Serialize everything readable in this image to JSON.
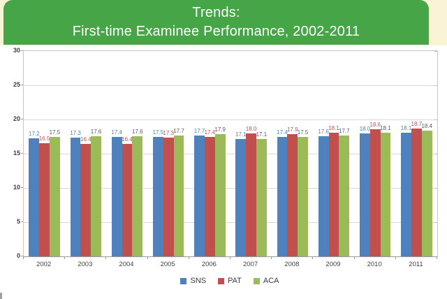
{
  "header": {
    "title_line1": "Trends:",
    "title_line2": "First-time Examinee Performance, 2002-2011",
    "banner_color": "#46A546",
    "strip_background_color": "#FAF3D6",
    "title_text_color": "#FFFFFF"
  },
  "chart_data": {
    "type": "bar",
    "title": "Trends: First-time Examinee Performance, 2002-2011",
    "categories": [
      "2002",
      "2003",
      "2004",
      "2005",
      "2006",
      "2007",
      "2008",
      "2009",
      "2010",
      "2011"
    ],
    "series": [
      {
        "name": "SNS",
        "color": "#4F81BD",
        "label_color": "#4F81BD",
        "values": [
          17.2,
          17.3,
          17.4,
          17.5,
          17.7,
          17.1,
          17.4,
          17.6,
          18.0,
          18.1
        ]
      },
      {
        "name": "PAT",
        "color": "#C0504D",
        "label_color": "#C0504D",
        "values": [
          16.5,
          16.4,
          16.4,
          17.3,
          17.4,
          18.0,
          17.9,
          18.1,
          18.6,
          18.7
        ]
      },
      {
        "name": "ACA",
        "color": "#9BBB59",
        "label_color": "#595959",
        "values": [
          17.5,
          17.6,
          17.6,
          17.7,
          17.9,
          17.1,
          17.5,
          17.7,
          18.1,
          18.4
        ]
      }
    ],
    "xlabel": "",
    "ylabel": "",
    "ylim": [
      0,
      30
    ],
    "ytick_step": 5,
    "grid": true,
    "data_labels": true,
    "legend_position": "bottom"
  }
}
